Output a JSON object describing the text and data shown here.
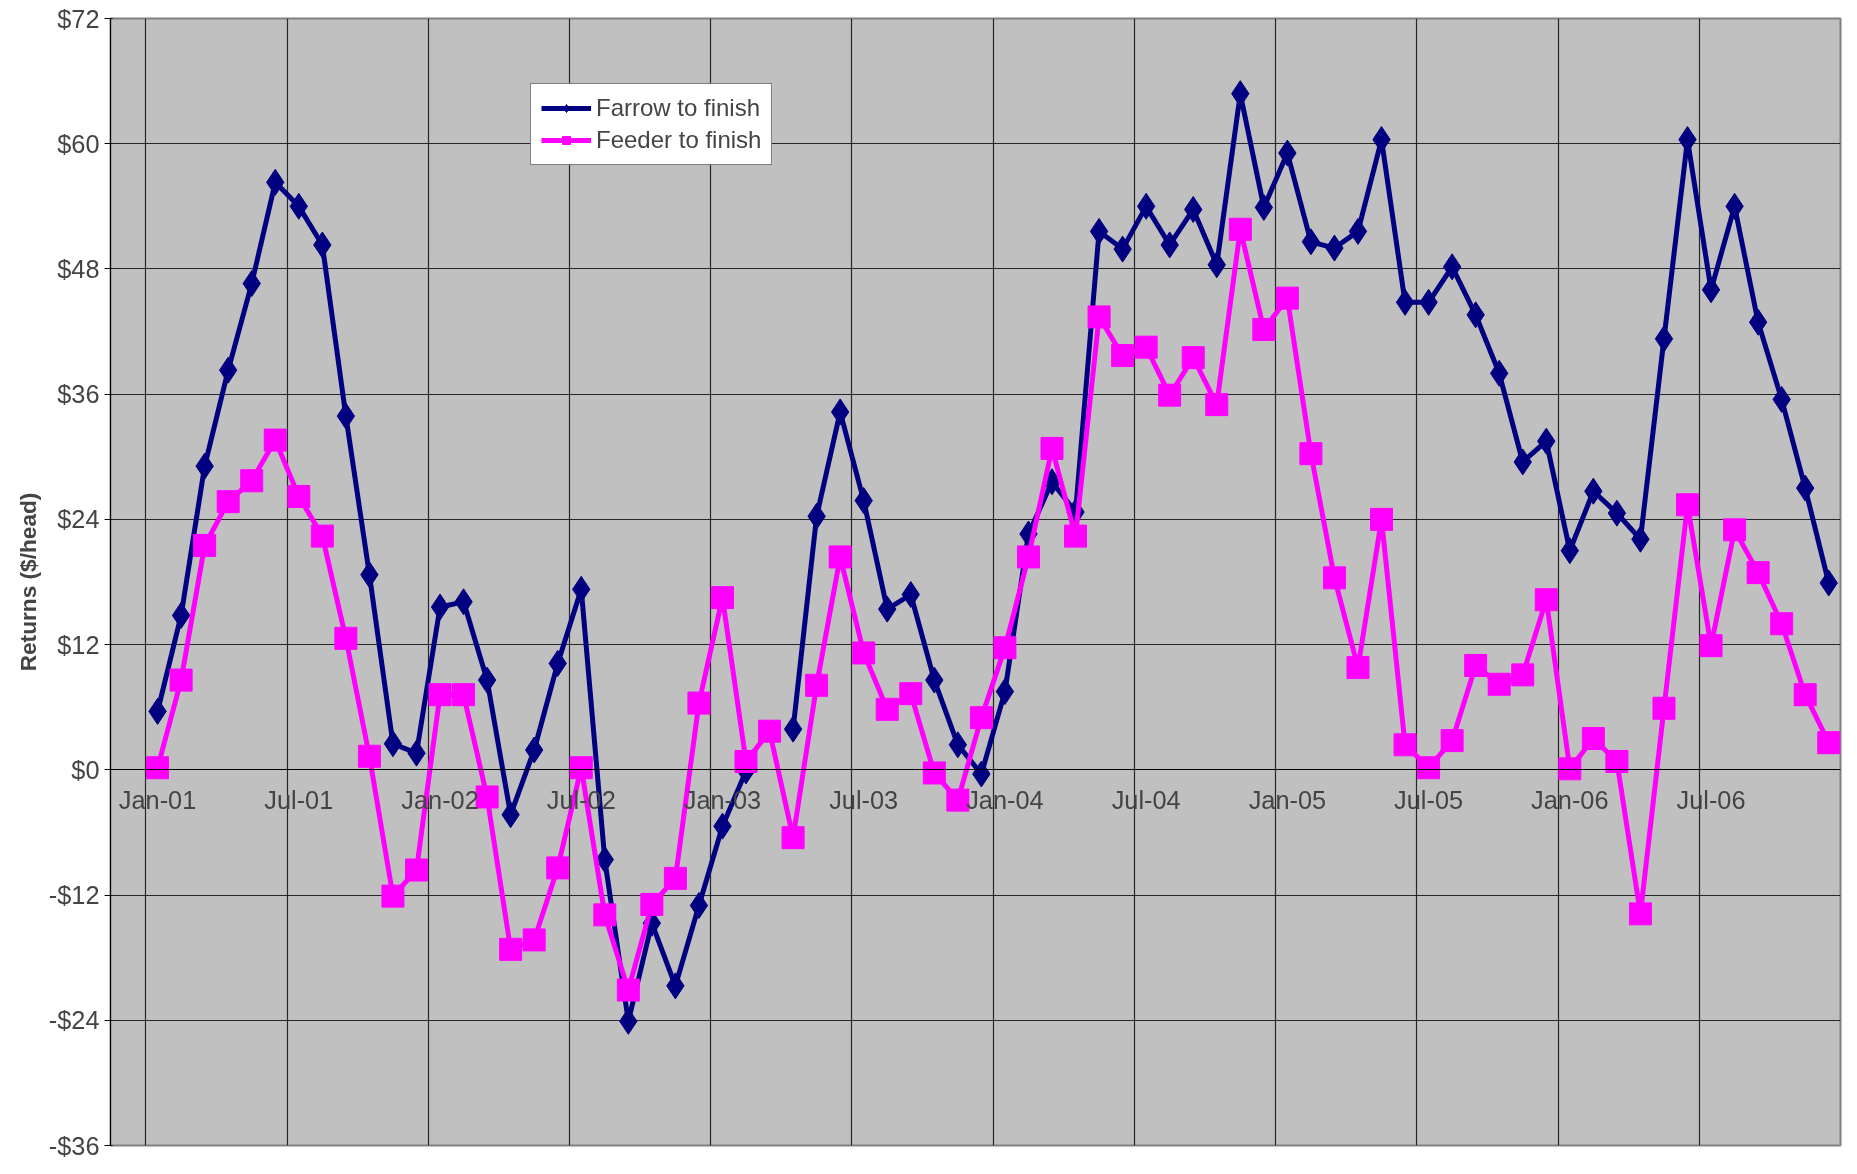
{
  "chart_data": {
    "type": "line",
    "ylabel": "Returns ($/head)",
    "categories": [
      "Jan-01",
      null,
      null,
      null,
      null,
      null,
      "Jul-01",
      null,
      null,
      null,
      null,
      null,
      "Jan-02",
      null,
      null,
      null,
      null,
      null,
      "Jul-02",
      null,
      null,
      null,
      null,
      null,
      "Jan-03",
      null,
      null,
      null,
      null,
      null,
      "Jul-03",
      null,
      null,
      null,
      null,
      null,
      "Jan-04",
      null,
      null,
      null,
      null,
      null,
      "Jul-04",
      null,
      null,
      null,
      null,
      null,
      "Jan-05",
      null,
      null,
      null,
      null,
      null,
      "Jul-05",
      null,
      null,
      null,
      null,
      null,
      "Jan-06",
      null,
      null,
      null,
      null,
      null,
      "Jul-06",
      null,
      null,
      null,
      null,
      null
    ],
    "series": [
      {
        "name": "Farrow to finish",
        "color": "#000080",
        "marker": "diamond",
        "values": [
          5.6,
          14.8,
          29.1,
          38.3,
          46.6,
          56.3,
          54.0,
          50.3,
          33.9,
          18.7,
          2.5,
          1.6,
          15.6,
          16.1,
          8.6,
          -4.3,
          1.9,
          10.2,
          17.3,
          -8.6,
          -24.1,
          -14.7,
          -20.7,
          -13.0,
          -5.4,
          -0.1,
          null,
          3.9,
          24.3,
          34.3,
          25.8,
          15.4,
          16.8,
          8.6,
          2.4,
          -0.4,
          7.5,
          22.6,
          27.6,
          24.7,
          51.6,
          49.9,
          54.0,
          50.3,
          53.7,
          48.4,
          64.8,
          53.9,
          59.1,
          50.6,
          50.0,
          51.6,
          60.4,
          44.8,
          44.8,
          48.2,
          43.6,
          38.0,
          29.5,
          31.5,
          21.0,
          26.7,
          24.6,
          22.1,
          41.3,
          60.4,
          46.0,
          54.0,
          42.9,
          35.5,
          27.0,
          17.9
        ]
      },
      {
        "name": "Feeder to finish",
        "color": "#ff00ff",
        "marker": "square",
        "values": [
          0.2,
          8.6,
          21.5,
          25.7,
          27.7,
          31.6,
          26.2,
          22.4,
          12.6,
          1.3,
          -12.1,
          -9.6,
          7.2,
          7.2,
          -2.6,
          -17.2,
          -16.3,
          -9.4,
          0.2,
          -13.9,
          -21.1,
          -12.9,
          -10.4,
          6.4,
          16.5,
          0.8,
          3.7,
          -6.5,
          8.1,
          20.4,
          11.2,
          5.8,
          7.3,
          -0.3,
          -2.9,
          5.0,
          11.7,
          20.4,
          30.8,
          22.4,
          43.4,
          39.7,
          40.5,
          35.9,
          39.5,
          35.0,
          51.8,
          42.2,
          45.2,
          30.3,
          18.4,
          9.8,
          24.0,
          2.4,
          0.2,
          2.8,
          10.0,
          8.2,
          9.1,
          16.3,
          0.1,
          3.0,
          0.8,
          -13.8,
          5.9,
          25.4,
          11.9,
          23.0,
          18.9,
          14.0,
          7.2,
          2.6
        ]
      }
    ],
    "ylim": [
      -36,
      72
    ],
    "yticks": [
      {
        "value": -36,
        "label": "-$36"
      },
      {
        "value": -24,
        "label": "-$24"
      },
      {
        "value": -12,
        "label": "-$12"
      },
      {
        "value": 0,
        "label": "$0"
      },
      {
        "value": 12,
        "label": "$12"
      },
      {
        "value": 24,
        "label": "$24"
      },
      {
        "value": 36,
        "label": "$36"
      },
      {
        "value": 48,
        "label": "$48"
      },
      {
        "value": 60,
        "label": "$60"
      },
      {
        "value": 72,
        "label": "$72"
      }
    ],
    "grid": true,
    "legend": "top",
    "line_style": "solid"
  }
}
